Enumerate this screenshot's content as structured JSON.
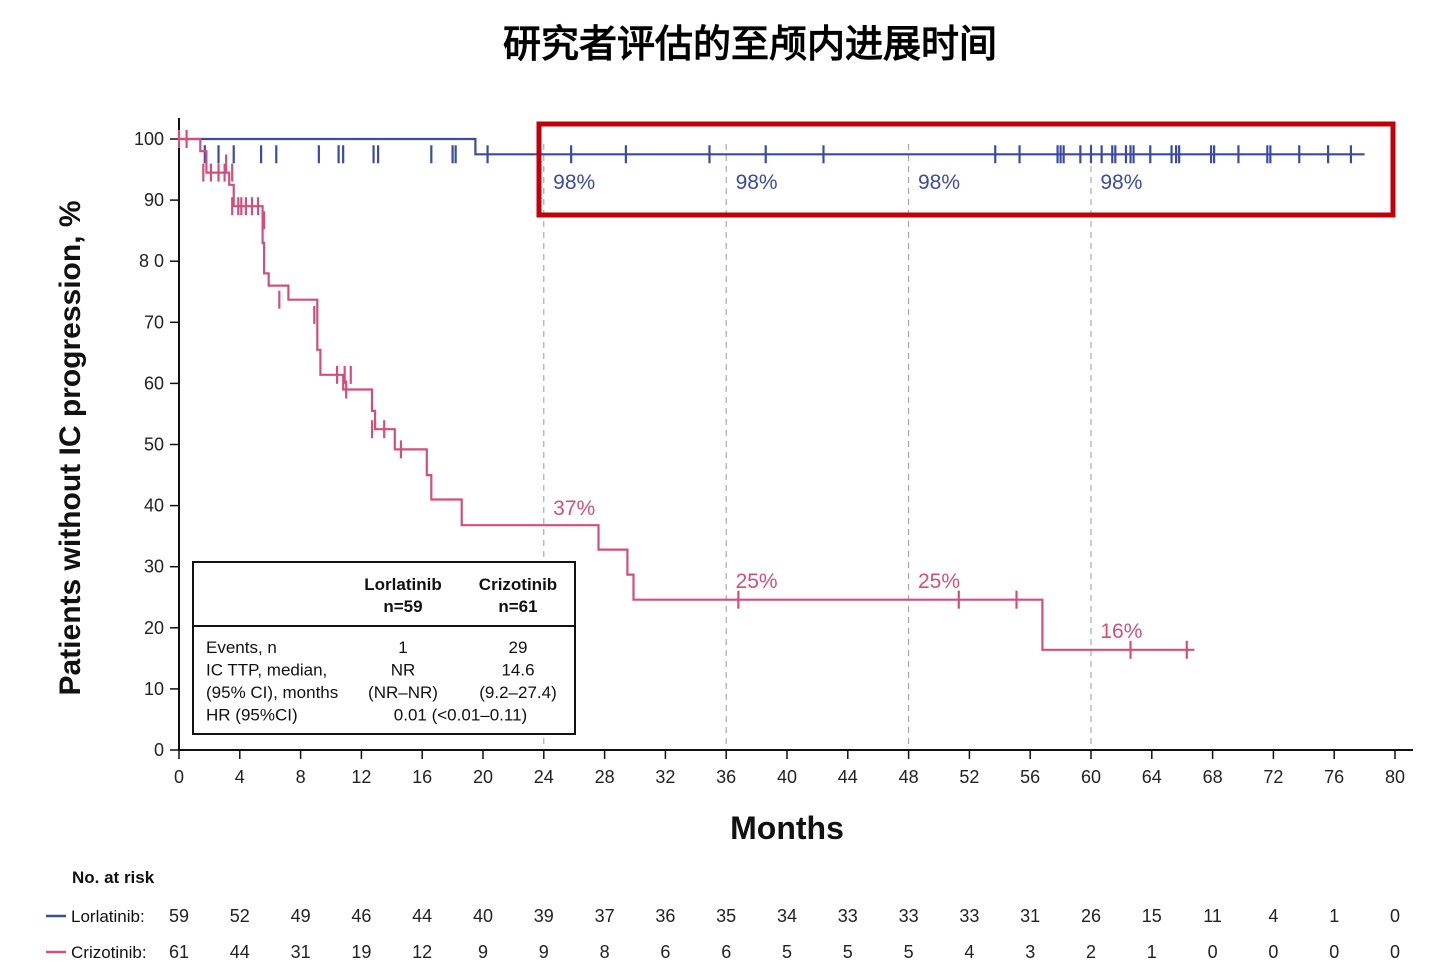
{
  "chart_data": {
    "type": "line",
    "title": "研究者评估的至颅内进展时间",
    "xlabel": "Months",
    "ylabel": "Patients without IC progression, %",
    "xlim": [
      0,
      80
    ],
    "ylim": [
      0,
      100
    ],
    "x_ticks": [
      0,
      4,
      8,
      12,
      16,
      20,
      24,
      28,
      32,
      36,
      40,
      44,
      48,
      52,
      56,
      60,
      64,
      68,
      72,
      76,
      80
    ],
    "y_ticks": [
      0,
      10,
      20,
      30,
      40,
      50,
      60,
      70,
      80,
      90,
      100
    ],
    "y_tick_labels": [
      "0",
      "10",
      "20",
      "30",
      "40",
      "50",
      "60",
      "70",
      "8 0",
      "90",
      "100"
    ],
    "reference_lines_x": [
      24,
      36,
      48,
      60
    ],
    "series": [
      {
        "name": "Lorlatinib",
        "color": "#3b4aa3",
        "step_points": [
          [
            0,
            100
          ],
          [
            19.5,
            100
          ],
          [
            19.5,
            97.5
          ],
          [
            78,
            97.5
          ]
        ],
        "censor_x": [
          1.7,
          2.6,
          3.6,
          5.4,
          6.4,
          9.2,
          10.5,
          10.8,
          12.8,
          13.1,
          16.6,
          18,
          18.2,
          20.3,
          25.8,
          29.4,
          34.9,
          38.6,
          42.4,
          53.7,
          55.3,
          57.8,
          58,
          58.2,
          59.3,
          60,
          60.7,
          61.4,
          61.6,
          62.3,
          62.6,
          62.8,
          63.9,
          65.3,
          65.6,
          65.8,
          67.9,
          68.1,
          69.7,
          71.6,
          71.8,
          73.7,
          75.6,
          77.1
        ],
        "censor_y": 97.5,
        "annotations": [
          {
            "label": "98%",
            "x": 26,
            "y": 93
          }
        ]
      },
      {
        "name": "Crizotinib",
        "color": "#d24f7c",
        "step_points": [
          [
            0,
            100
          ],
          [
            1.4,
            100
          ],
          [
            1.4,
            98
          ],
          [
            1.8,
            98
          ],
          [
            1.8,
            94.5
          ],
          [
            3.3,
            94.5
          ],
          [
            3.3,
            92.5
          ],
          [
            3.6,
            92.5
          ],
          [
            3.6,
            89
          ],
          [
            5.5,
            89
          ],
          [
            5.5,
            83
          ],
          [
            5.6,
            83
          ],
          [
            5.6,
            78
          ],
          [
            5.9,
            78
          ],
          [
            5.9,
            76
          ],
          [
            7.2,
            76
          ],
          [
            7.2,
            73.7
          ],
          [
            9.1,
            73.7
          ],
          [
            9.1,
            65.5
          ],
          [
            9.3,
            65.5
          ],
          [
            9.3,
            61.4
          ],
          [
            10.8,
            61.4
          ],
          [
            10.8,
            59
          ],
          [
            12.7,
            59
          ],
          [
            12.7,
            55.5
          ],
          [
            12.9,
            55.5
          ],
          [
            12.9,
            52.5
          ],
          [
            14.2,
            52.5
          ],
          [
            14.2,
            49.2
          ],
          [
            16.3,
            49.2
          ],
          [
            16.3,
            45
          ],
          [
            16.6,
            45
          ],
          [
            16.6,
            41
          ],
          [
            18.6,
            41
          ],
          [
            18.6,
            36.8
          ],
          [
            27.6,
            36.8
          ],
          [
            27.6,
            32.8
          ],
          [
            29.5,
            32.8
          ],
          [
            29.5,
            28.7
          ],
          [
            29.9,
            28.7
          ],
          [
            29.9,
            24.6
          ],
          [
            56.8,
            24.6
          ],
          [
            56.8,
            16.4
          ],
          [
            66.8,
            16.4
          ]
        ],
        "censor_points": [
          [
            0,
            100
          ],
          [
            0.5,
            100
          ],
          [
            1.6,
            94.5
          ],
          [
            2.1,
            94.5
          ],
          [
            2.6,
            94.5
          ],
          [
            3.0,
            94.5
          ],
          [
            3.1,
            96
          ],
          [
            3.5,
            94.5
          ],
          [
            3.5,
            89
          ],
          [
            3.9,
            89
          ],
          [
            4.1,
            89
          ],
          [
            4.4,
            89
          ],
          [
            4.8,
            89
          ],
          [
            5.2,
            89
          ],
          [
            5.6,
            86.7
          ],
          [
            6.6,
            73.7
          ],
          [
            8.9,
            71.2
          ],
          [
            10.4,
            61.4
          ],
          [
            10.9,
            61.4
          ],
          [
            11.3,
            61.4
          ],
          [
            11.0,
            59
          ],
          [
            12.7,
            52.5
          ],
          [
            13.5,
            52.5
          ],
          [
            14.6,
            49.2
          ],
          [
            36.8,
            24.6
          ],
          [
            51.3,
            24.6
          ],
          [
            55.1,
            24.6
          ],
          [
            62.6,
            16.4
          ],
          [
            66.3,
            16.4
          ]
        ],
        "annotations": [
          {
            "label": "37%",
            "x": 26,
            "y": 38.5
          },
          {
            "label": "25%",
            "x": 38,
            "y": 26.5
          },
          {
            "label": "25%",
            "x": 50,
            "y": 26.5
          },
          {
            "label": "16%",
            "x": 62,
            "y": 18.3
          }
        ]
      }
    ],
    "lorlatinib_labels": [
      {
        "label": "98%",
        "x": 26
      },
      {
        "label": "98%",
        "x": 38
      },
      {
        "label": "98%",
        "x": 50
      },
      {
        "label": "98%",
        "x": 62
      }
    ],
    "legend_table": {
      "headers": [
        [
          "Lorlatinib",
          "n=59"
        ],
        [
          "Crizotinib",
          "n=61"
        ]
      ],
      "rows": [
        {
          "label": "Events, n",
          "lorlatinib": "1",
          "crizotinib": "29"
        },
        {
          "label": "IC TTP, median,",
          "lorlatinib": "NR",
          "crizotinib": "14.6"
        },
        {
          "label": "(95% CI), months",
          "lorlatinib": "(NR–NR)",
          "crizotinib": "(9.2–27.4)"
        },
        {
          "label": "HR (95%CI)",
          "combined": "0.01 (<0.01–0.11)"
        }
      ]
    },
    "risk_table": {
      "title": "No. at risk",
      "rows": [
        {
          "label": "Lorlatinib:",
          "color": "#3b4aa3",
          "values": [
            59,
            52,
            49,
            46,
            44,
            40,
            39,
            37,
            36,
            35,
            34,
            33,
            33,
            33,
            31,
            26,
            15,
            11,
            4,
            1,
            0
          ]
        },
        {
          "label": "Crizotinib:",
          "color": "#d24f7c",
          "values": [
            61,
            44,
            31,
            19,
            12,
            9,
            9,
            8,
            6,
            6,
            5,
            5,
            5,
            4,
            3,
            2,
            1,
            0,
            0,
            0,
            0
          ]
        }
      ]
    },
    "highlight_box_color": "#c0000b"
  }
}
